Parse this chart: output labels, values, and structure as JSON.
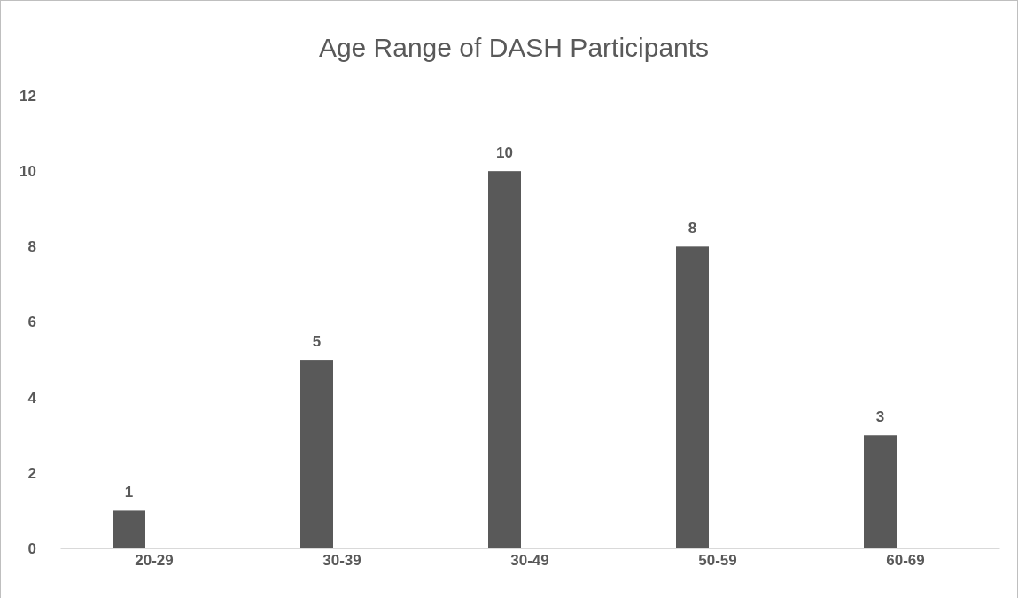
{
  "chart_data": {
    "type": "bar",
    "title": "Age Range of DASH Participants",
    "categories": [
      "20-29",
      "30-39",
      "30-49",
      "50-59",
      "60-69"
    ],
    "values": [
      1,
      5,
      10,
      8,
      3
    ],
    "color": "#595959",
    "ylim": [
      0,
      12
    ],
    "yticks": [
      0,
      2,
      4,
      6,
      8,
      10,
      12
    ],
    "grid": false,
    "data_labels": true
  }
}
